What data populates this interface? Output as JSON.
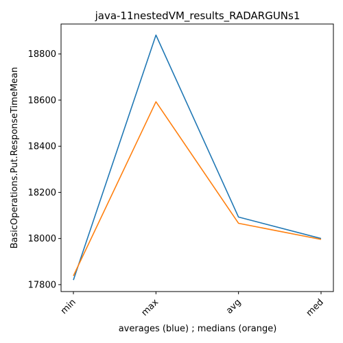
{
  "colors": {
    "averages": "#1f77b4",
    "medians": "#ff7f0e"
  },
  "chart_data": {
    "type": "line",
    "title": "java-11nestedVM_results_RADARGUNs1",
    "xlabel": "averages (blue) ; medians (orange)",
    "ylabel": "BasicOperations.Put.ResponseTimeMean",
    "categories": [
      "min",
      "max",
      "avg",
      "med"
    ],
    "yticks": [
      17800,
      18000,
      18200,
      18400,
      18600,
      18800
    ],
    "ylim": [
      17770,
      18930
    ],
    "grid": false,
    "series": [
      {
        "values": [
          17820,
          18882,
          18093,
          18000
        ]
      },
      {
        "values": [
          17838,
          18593,
          18066,
          17996
        ]
      }
    ]
  }
}
